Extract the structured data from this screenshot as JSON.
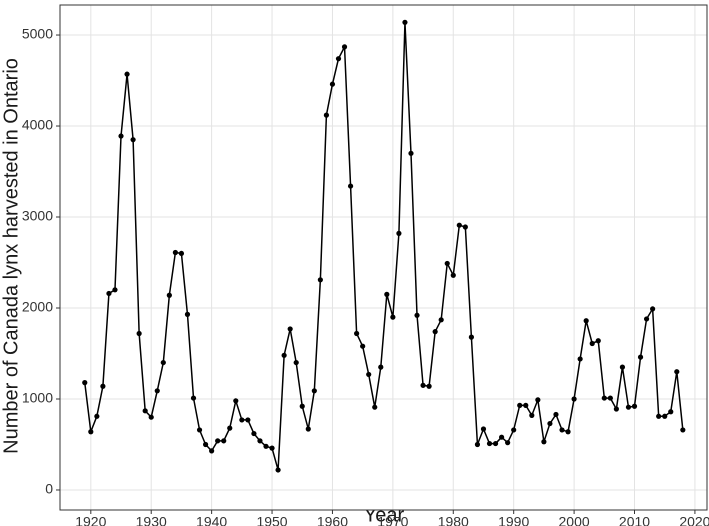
{
  "chart_data": {
    "type": "line",
    "x_label": "Year",
    "y_label": "Number of Canada lynx harvested in Ontario",
    "x": [
      1919,
      1920,
      1921,
      1922,
      1923,
      1924,
      1925,
      1926,
      1927,
      1928,
      1929,
      1930,
      1931,
      1932,
      1933,
      1934,
      1935,
      1936,
      1937,
      1938,
      1939,
      1940,
      1941,
      1942,
      1943,
      1944,
      1945,
      1946,
      1947,
      1948,
      1949,
      1950,
      1951,
      1952,
      1953,
      1954,
      1955,
      1956,
      1957,
      1958,
      1959,
      1960,
      1961,
      1962,
      1963,
      1964,
      1965,
      1966,
      1967,
      1968,
      1969,
      1970,
      1971,
      1972,
      1973,
      1974,
      1975,
      1976,
      1977,
      1978,
      1979,
      1980,
      1981,
      1982,
      1983,
      1984,
      1985,
      1986,
      1987,
      1988,
      1989,
      1990,
      1991,
      1992,
      1993,
      1994,
      1995,
      1996,
      1997,
      1998,
      1999,
      2000,
      2001,
      2002,
      2003,
      2004,
      2005,
      2006,
      2007,
      2008,
      2009,
      2010,
      2011,
      2012,
      2013,
      2014,
      2015,
      2016,
      2017,
      2018
    ],
    "values": [
      1180,
      640,
      810,
      1140,
      2160,
      2200,
      3890,
      4570,
      3850,
      1720,
      870,
      800,
      1090,
      1400,
      2140,
      2610,
      2600,
      1930,
      1010,
      660,
      500,
      430,
      540,
      540,
      680,
      980,
      770,
      770,
      620,
      540,
      480,
      460,
      220,
      1480,
      1770,
      1400,
      920,
      670,
      1090,
      2310,
      4120,
      4460,
      4740,
      4870,
      3340,
      1720,
      1580,
      1270,
      910,
      1350,
      2150,
      1900,
      2820,
      5140,
      3700,
      1920,
      1150,
      1140,
      1740,
      1870,
      2490,
      2360,
      2910,
      2890,
      1680,
      500,
      670,
      510,
      510,
      580,
      520,
      660,
      930,
      930,
      820,
      990,
      530,
      730,
      830,
      660,
      640,
      1000,
      1440,
      1860,
      1610,
      1640,
      1010,
      1010,
      890,
      1350,
      910,
      920,
      1460,
      1880,
      1990,
      810,
      810,
      860,
      1300,
      660
    ],
    "color": "#000000",
    "xlim": [
      1914.9,
      2022
    ],
    "xticks": [
      1920,
      1930,
      1940,
      1950,
      1960,
      1970,
      1980,
      1990,
      2000,
      2010,
      2020
    ],
    "ylim": [
      -220,
      5330
    ],
    "yticks": [
      0,
      1000,
      2000,
      3000,
      4000,
      5000
    ],
    "grid": true
  }
}
